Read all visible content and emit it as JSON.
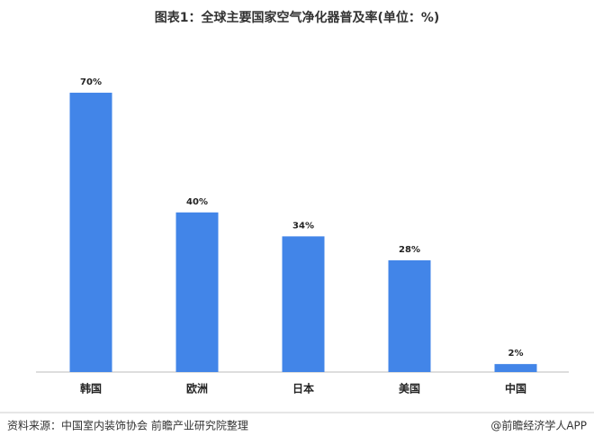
{
  "chart_data": {
    "type": "bar",
    "title": "图表1：全球主要国家空气净化器普及率(单位：%)",
    "categories": [
      "韩国",
      "欧洲",
      "日本",
      "美国",
      "中国"
    ],
    "values": [
      70,
      40,
      34,
      28,
      2
    ],
    "value_labels": [
      "70%",
      "40%",
      "34%",
      "28%",
      "2%"
    ],
    "color": "#4285e8",
    "source": "资料来源：中国室内装饰协会 前瞻产业研究院整理",
    "credit": "@前瞻经济学人APP"
  }
}
